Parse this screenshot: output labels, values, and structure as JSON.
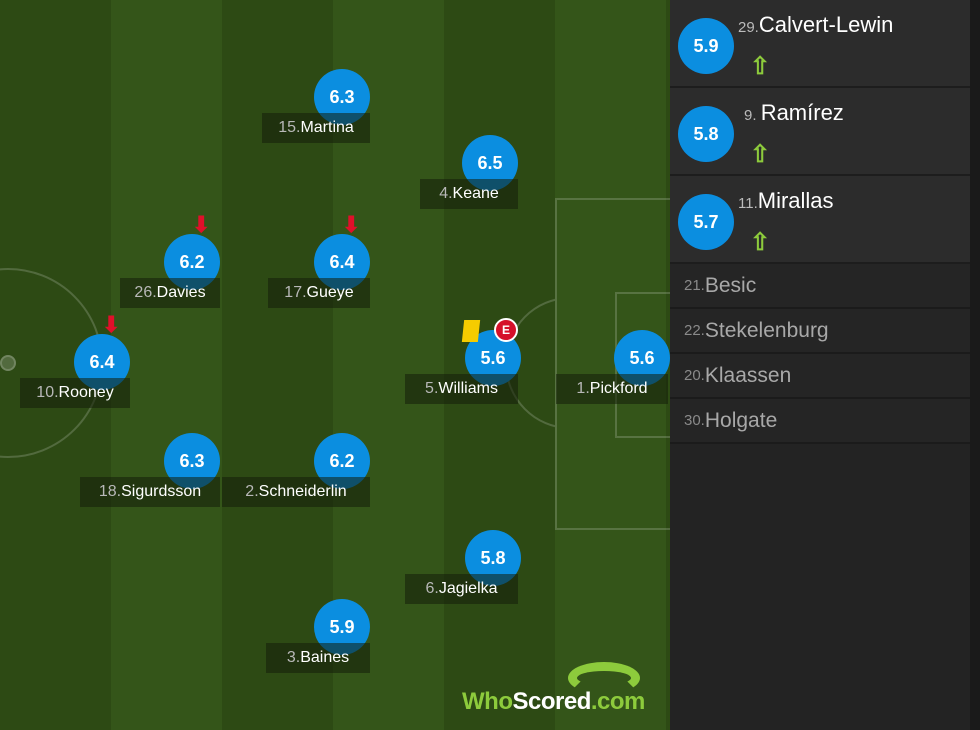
{
  "colors": {
    "rating": "#0b8ee0",
    "sub_off": "#e0102a",
    "sub_on": "#8dcb3c",
    "yellow_card": "#f5cc00"
  },
  "players": [
    {
      "num": "15.",
      "name": "Martina",
      "rating": "6.3"
    },
    {
      "num": "4. ",
      "name": "Keane",
      "rating": "6.5"
    },
    {
      "num": "26.",
      "name": "Davies",
      "rating": "6.2",
      "subbed_off": true
    },
    {
      "num": "17.",
      "name": "Gueye",
      "rating": "6.4",
      "subbed_off": true
    },
    {
      "num": "10.",
      "name": "Rooney",
      "rating": "6.4",
      "subbed_off": true
    },
    {
      "num": "5. ",
      "name": "Williams",
      "rating": "5.6",
      "yellow_card": true,
      "badge": "E"
    },
    {
      "num": "1. ",
      "name": "Pickford",
      "rating": "5.6"
    },
    {
      "num": "18.",
      "name": "Sigurdsson",
      "rating": "6.3"
    },
    {
      "num": "2. ",
      "name": "Schneiderlin",
      "rating": "6.2"
    },
    {
      "num": "6. ",
      "name": "Jagielka",
      "rating": "5.8"
    },
    {
      "num": "3. ",
      "name": "Baines",
      "rating": "5.9"
    }
  ],
  "substitutes": [
    {
      "num": "29.",
      "name": "Calvert-Lewin",
      "rating": "5.9"
    },
    {
      "num": "9. ",
      "name": "Ramírez",
      "rating": "5.8"
    },
    {
      "num": "11.",
      "name": "Mirallas",
      "rating": "5.7"
    }
  ],
  "bench": [
    {
      "num": "21.",
      "name": "Besic"
    },
    {
      "num": "22.",
      "name": "Stekelenburg"
    },
    {
      "num": "20.",
      "name": "Klaassen"
    },
    {
      "num": "30.",
      "name": "Holgate"
    }
  ],
  "logo": {
    "part1": "Who",
    "part2": "Scored",
    "part3": ".com"
  }
}
